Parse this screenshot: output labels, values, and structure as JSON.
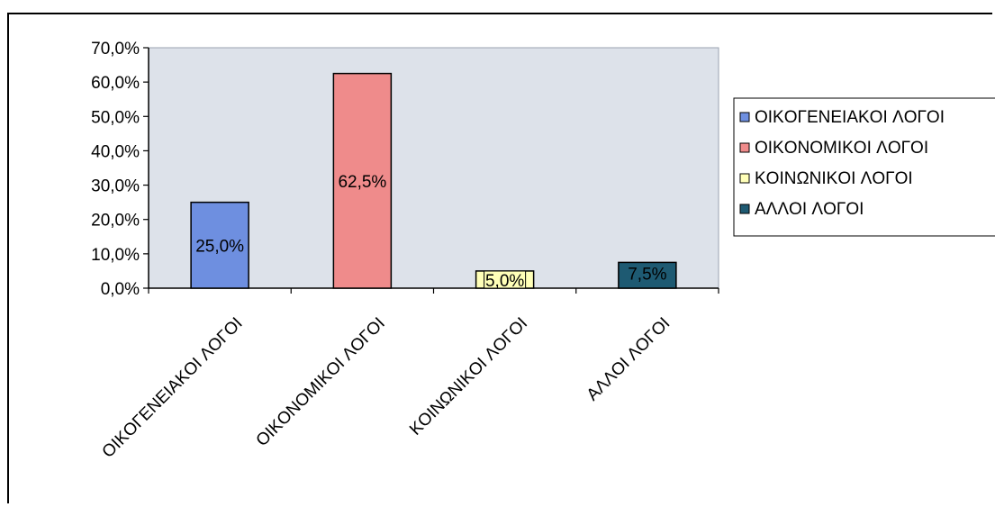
{
  "chart_data": {
    "type": "bar",
    "categories": [
      "OIKOΓENEIAKOI ΛOΓOI",
      "OIKONOMIKOI ΛOΓOI",
      "KOINΩNIKOI ΛOΓOI",
      "AΛΛOI ΛOΓOI"
    ],
    "values": [
      25.0,
      62.5,
      5.0,
      7.5
    ],
    "data_labels": [
      "25,0%",
      "62,5%",
      "5,0%",
      "7,5%"
    ],
    "colors": [
      "#6e8fe0",
      "#ef8b8b",
      "#ffffb8",
      "#1e5a72"
    ],
    "y_ticks": [
      "0,0%",
      "10,0%",
      "20,0%",
      "30,0%",
      "40,0%",
      "50,0%",
      "60,0%",
      "70,0%"
    ],
    "ylim": [
      0,
      70
    ],
    "legend": {
      "position": "right",
      "items": [
        "OIKOΓENEIAKOI ΛOΓOI",
        "OIKONOMIKOI  ΛOΓOI",
        "KOINΩNIKOI  ΛOΓOI",
        "AΛΛOI ΛOΓOI"
      ]
    },
    "plot_background": "#dde2ea",
    "grid": false,
    "title": "",
    "xlabel": "",
    "ylabel": ""
  }
}
